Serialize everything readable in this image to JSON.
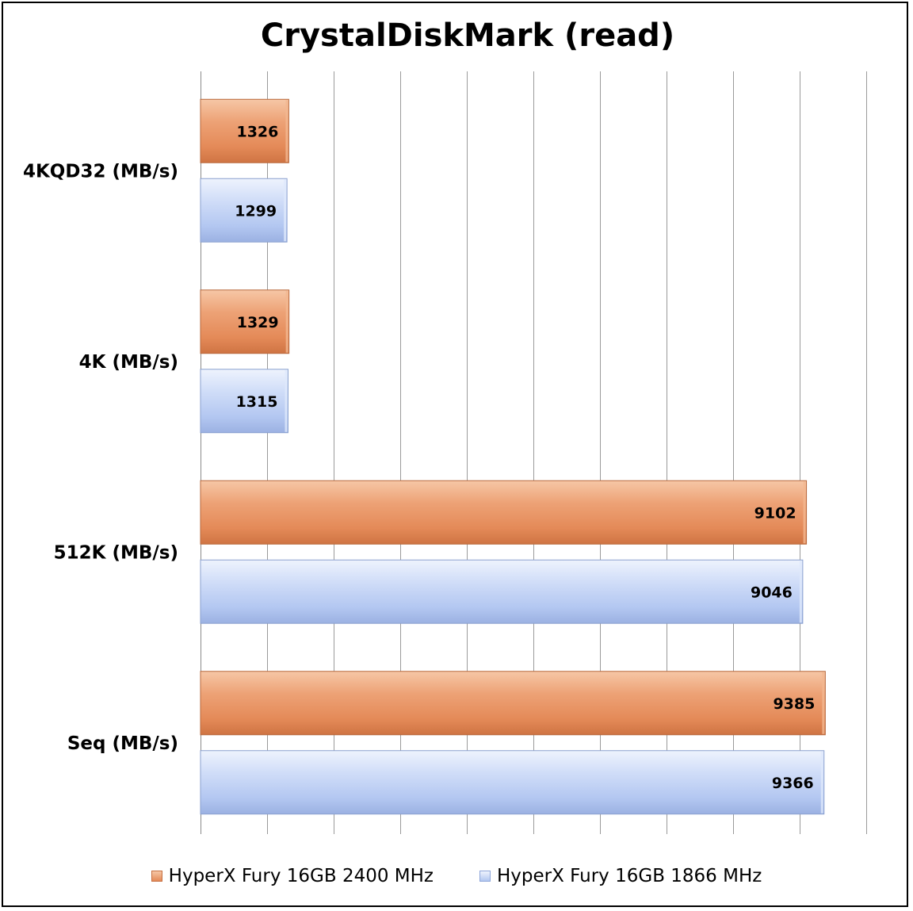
{
  "chart_data": {
    "type": "bar",
    "orientation": "horizontal",
    "title": "CrystalDiskMark (read)",
    "xlabel": "",
    "ylabel": "",
    "xlim": [
      0,
      10000
    ],
    "grid": true,
    "legend_position": "bottom",
    "categories": [
      "4KQD32 (MB/s)",
      "4K (MB/s)",
      "512K (MB/s)",
      "Seq (MB/s)"
    ],
    "series": [
      {
        "name": "HyperX Fury 16GB 2400 MHz",
        "color": "#e8956a",
        "values": [
          1326,
          1329,
          9102,
          9385
        ]
      },
      {
        "name": "HyperX Fury 16GB 1866 MHz",
        "color": "#b9ccf4",
        "values": [
          1299,
          1315,
          9046,
          9366
        ]
      }
    ]
  }
}
